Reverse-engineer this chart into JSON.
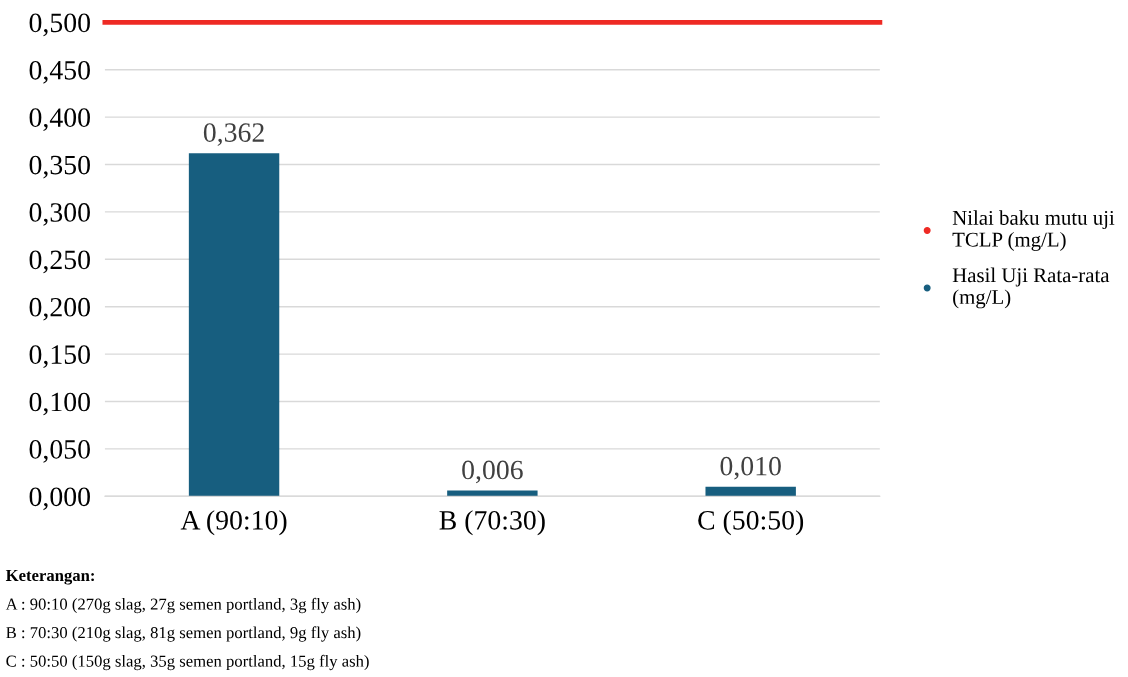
{
  "chart_data": {
    "type": "bar",
    "categories": [
      "A (90:10)",
      "B (70:30)",
      "C (50:50)"
    ],
    "series": [
      {
        "name": "Hasil Uji Rata-rata (mg/L)",
        "color": "#175e7f",
        "values": [
          0.362,
          0.006,
          0.01
        ],
        "value_labels": [
          "0,362",
          "0,006",
          "0,010"
        ]
      }
    ],
    "ref_lines": [
      {
        "axis": "y",
        "value": 0.5,
        "label": "Nilai baku mutu uji TCLP (mg/L)",
        "color": "#ee2a24"
      }
    ],
    "ylim": [
      0,
      0.5
    ],
    "yticks": [
      {
        "value": 0,
        "label": "0,000"
      },
      {
        "value": 0.05,
        "label": "0,050"
      },
      {
        "value": 0.1,
        "label": "0,100"
      },
      {
        "value": 0.15,
        "label": "0,150"
      },
      {
        "value": 0.2,
        "label": "0,200"
      },
      {
        "value": 0.25,
        "label": "0,250"
      },
      {
        "value": 0.3,
        "label": "0,300"
      },
      {
        "value": 0.35,
        "label": "0,350"
      },
      {
        "value": 0.4,
        "label": "0,400"
      },
      {
        "value": 0.45,
        "label": "0,450"
      },
      {
        "value": 0.5,
        "label": "0,500"
      }
    ],
    "grid": "y",
    "legend": "right",
    "annotations": [
      "Keterangan:",
      "A : 90:10 (270g slag, 27g semen portland, 3g fly ash)",
      "B : 70:30 (210g slag, 81g semen portland, 9g fly ash)",
      "C : 50:50 (150g slag, 35g semen portland, 15g fly ash)"
    ]
  }
}
